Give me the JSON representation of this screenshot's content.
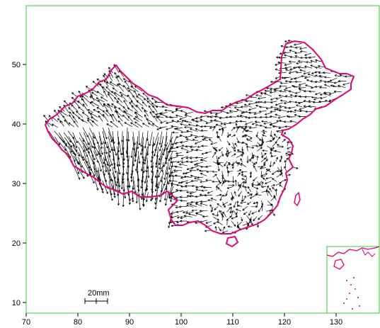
{
  "map": {
    "x_axis": {
      "ticks": [
        "70",
        "80",
        "90",
        "100",
        "110",
        "120",
        "130"
      ]
    },
    "y_axis": {
      "ticks": [
        "10",
        "20",
        "30",
        "40",
        "50"
      ]
    },
    "scale_bar": {
      "label": "20mm"
    },
    "colors": {
      "frame": "#33cc33",
      "border": "#e6007a",
      "arrow": "#000000",
      "inset_frame": "#33cc33"
    },
    "inset": {
      "content": "south-china-sea-islands"
    }
  }
}
